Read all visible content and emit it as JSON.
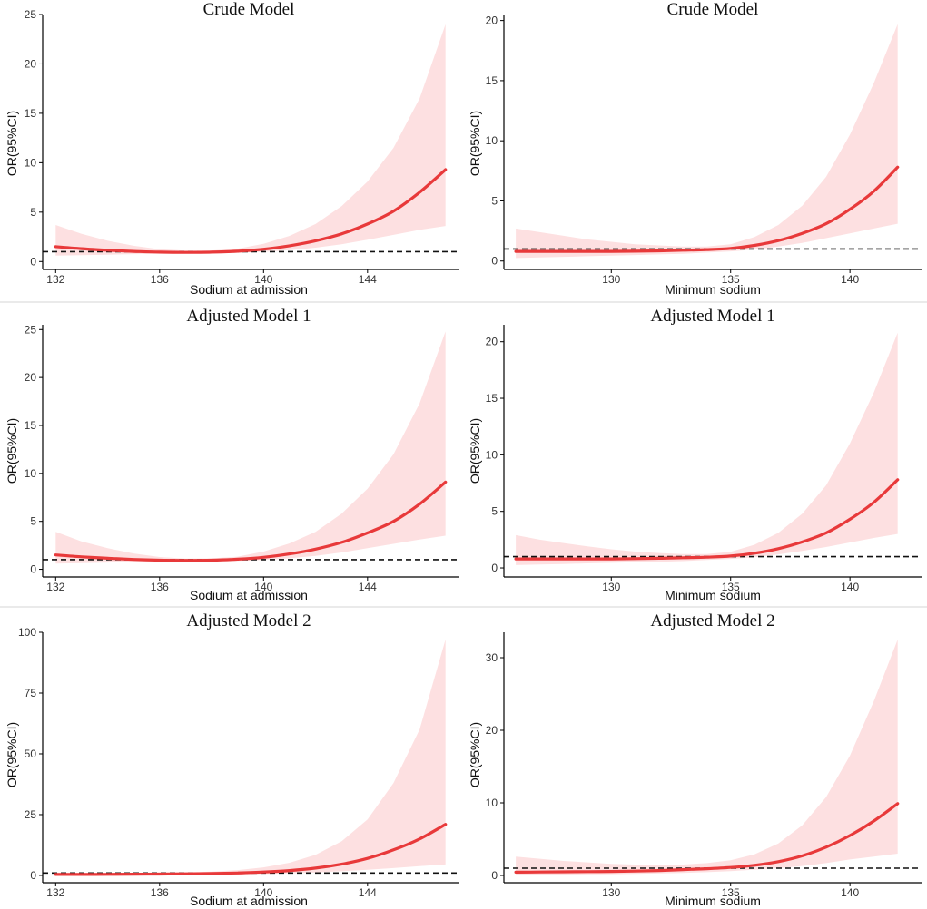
{
  "colors": {
    "curve": "#e8393a",
    "ci_band": "#fde0e1",
    "reference": "#111111"
  },
  "chart_data": [
    {
      "type": "line",
      "title": "Crude Model",
      "xlabel": "Sodium at admission",
      "ylabel": "OR(95%CI)",
      "xlim": [
        131.5,
        147.5
      ],
      "ylim": [
        -0.8,
        25
      ],
      "xticks": [
        132,
        136,
        140,
        144
      ],
      "yticks": [
        0,
        5,
        10,
        15,
        20,
        25
      ],
      "reference_y": 1,
      "series": [
        {
          "name": "OR",
          "x": [
            132,
            133,
            134,
            135,
            136,
            137,
            138,
            139,
            140,
            141,
            142,
            143,
            144,
            145,
            146,
            147
          ],
          "y": [
            1.5,
            1.3,
            1.15,
            1.03,
            0.95,
            0.93,
            0.95,
            1.05,
            1.25,
            1.6,
            2.1,
            2.8,
            3.8,
            5.1,
            7.0,
            9.3
          ],
          "lower": [
            0.6,
            0.65,
            0.7,
            0.75,
            0.78,
            0.8,
            0.82,
            0.88,
            0.98,
            1.15,
            1.4,
            1.75,
            2.2,
            2.7,
            3.2,
            3.6
          ],
          "upper": [
            3.7,
            2.8,
            2.1,
            1.6,
            1.25,
            1.1,
            1.12,
            1.3,
            1.8,
            2.6,
            3.8,
            5.6,
            8.1,
            11.5,
            16.5,
            24
          ]
        }
      ]
    },
    {
      "type": "line",
      "title": "Crude Model",
      "xlabel": "Minimum sodium",
      "ylabel": "OR(95%CI)",
      "xlim": [
        125.5,
        143
      ],
      "ylim": [
        -0.7,
        20.5
      ],
      "xticks": [
        130,
        135,
        140
      ],
      "yticks": [
        0,
        5,
        10,
        15,
        20
      ],
      "reference_y": 1,
      "series": [
        {
          "name": "OR",
          "x": [
            126,
            127,
            128,
            129,
            130,
            131,
            132,
            133,
            134,
            135,
            136,
            137,
            138,
            139,
            140,
            141,
            142
          ],
          "y": [
            0.8,
            0.8,
            0.8,
            0.8,
            0.8,
            0.82,
            0.85,
            0.9,
            0.95,
            1.05,
            1.3,
            1.7,
            2.3,
            3.1,
            4.3,
            5.8,
            7.8
          ],
          "lower": [
            0.25,
            0.3,
            0.35,
            0.4,
            0.45,
            0.5,
            0.55,
            0.6,
            0.7,
            0.8,
            0.95,
            1.2,
            1.5,
            1.9,
            2.3,
            2.7,
            3.1
          ],
          "upper": [
            2.7,
            2.4,
            2.1,
            1.8,
            1.6,
            1.4,
            1.3,
            1.2,
            1.2,
            1.4,
            2.0,
            3.0,
            4.6,
            7.0,
            10.5,
            14.8,
            19.7
          ]
        }
      ]
    },
    {
      "type": "line",
      "title": "Adjusted Model 1",
      "xlabel": "Sodium at admission",
      "ylabel": "OR(95%CI)",
      "xlim": [
        131.5,
        147.5
      ],
      "ylim": [
        -0.8,
        25.5
      ],
      "xticks": [
        132,
        136,
        140,
        144
      ],
      "yticks": [
        0,
        5,
        10,
        15,
        20,
        25
      ],
      "reference_y": 1,
      "series": [
        {
          "name": "OR",
          "x": [
            132,
            133,
            134,
            135,
            136,
            137,
            138,
            139,
            140,
            141,
            142,
            143,
            144,
            145,
            146,
            147
          ],
          "y": [
            1.5,
            1.3,
            1.15,
            1.03,
            0.95,
            0.93,
            0.95,
            1.05,
            1.25,
            1.6,
            2.1,
            2.8,
            3.8,
            5.0,
            6.8,
            9.1
          ],
          "lower": [
            0.6,
            0.65,
            0.7,
            0.75,
            0.78,
            0.8,
            0.82,
            0.88,
            0.98,
            1.15,
            1.4,
            1.75,
            2.2,
            2.65,
            3.1,
            3.5
          ],
          "upper": [
            3.9,
            2.9,
            2.2,
            1.65,
            1.28,
            1.12,
            1.14,
            1.32,
            1.85,
            2.7,
            3.9,
            5.8,
            8.4,
            12.0,
            17.3,
            24.8
          ]
        }
      ]
    },
    {
      "type": "line",
      "title": "Adjusted Model 1",
      "xlabel": "Minimum sodium",
      "ylabel": "OR(95%CI)",
      "xlim": [
        125.5,
        143
      ],
      "ylim": [
        -0.8,
        21.5
      ],
      "xticks": [
        130,
        135,
        140
      ],
      "yticks": [
        0,
        5,
        10,
        15,
        20
      ],
      "reference_y": 1,
      "series": [
        {
          "name": "OR",
          "x": [
            126,
            127,
            128,
            129,
            130,
            131,
            132,
            133,
            134,
            135,
            136,
            137,
            138,
            139,
            140,
            141,
            142
          ],
          "y": [
            0.8,
            0.8,
            0.8,
            0.8,
            0.8,
            0.82,
            0.85,
            0.9,
            0.95,
            1.05,
            1.3,
            1.7,
            2.3,
            3.1,
            4.3,
            5.8,
            7.8
          ],
          "lower": [
            0.25,
            0.3,
            0.35,
            0.4,
            0.45,
            0.5,
            0.55,
            0.6,
            0.7,
            0.8,
            0.95,
            1.2,
            1.5,
            1.85,
            2.25,
            2.65,
            3.0
          ],
          "upper": [
            2.9,
            2.5,
            2.2,
            1.9,
            1.65,
            1.45,
            1.32,
            1.22,
            1.22,
            1.42,
            2.05,
            3.1,
            4.8,
            7.3,
            11.0,
            15.5,
            20.8
          ]
        }
      ]
    },
    {
      "type": "line",
      "title": "Adjusted Model 2",
      "xlabel": "Sodium at admission",
      "ylabel": "OR(95%CI)",
      "xlim": [
        131.5,
        147.5
      ],
      "ylim": [
        -3,
        100
      ],
      "xticks": [
        132,
        136,
        140,
        144
      ],
      "yticks": [
        0,
        25,
        50,
        75,
        100
      ],
      "reference_y": 1,
      "series": [
        {
          "name": "OR",
          "x": [
            132,
            133,
            134,
            135,
            136,
            137,
            138,
            139,
            140,
            141,
            142,
            143,
            144,
            145,
            146,
            147
          ],
          "y": [
            0.4,
            0.4,
            0.45,
            0.5,
            0.55,
            0.65,
            0.8,
            1.0,
            1.4,
            2.0,
            3.0,
            4.6,
            7.0,
            10.5,
            15.0,
            21.0
          ],
          "lower": [
            0.05,
            0.05,
            0.08,
            0.1,
            0.15,
            0.2,
            0.3,
            0.4,
            0.6,
            0.85,
            1.2,
            1.7,
            2.3,
            3.0,
            3.8,
            4.5
          ],
          "upper": [
            1.2,
            1.1,
            1.1,
            1.1,
            1.2,
            1.3,
            1.6,
            2.2,
            3.3,
            5.2,
            8.5,
            14.0,
            23.0,
            38.0,
            60.0,
            97.0
          ]
        }
      ]
    },
    {
      "type": "line",
      "title": "Adjusted Model 2",
      "xlabel": "Minimum sodium",
      "ylabel": "OR(95%CI)",
      "xlim": [
        125.5,
        143
      ],
      "ylim": [
        -1,
        33.5
      ],
      "xticks": [
        130,
        135,
        140
      ],
      "yticks": [
        0,
        10,
        20,
        30
      ],
      "reference_y": 1,
      "series": [
        {
          "name": "OR",
          "x": [
            126,
            127,
            128,
            129,
            130,
            131,
            132,
            133,
            134,
            135,
            136,
            137,
            138,
            139,
            140,
            141,
            142
          ],
          "y": [
            0.45,
            0.47,
            0.5,
            0.52,
            0.55,
            0.6,
            0.68,
            0.8,
            0.93,
            1.1,
            1.4,
            1.9,
            2.7,
            3.9,
            5.5,
            7.5,
            9.9
          ],
          "lower": [
            0.08,
            0.1,
            0.12,
            0.15,
            0.18,
            0.22,
            0.28,
            0.35,
            0.45,
            0.6,
            0.8,
            1.0,
            1.3,
            1.7,
            2.2,
            2.6,
            3.0
          ],
          "upper": [
            2.6,
            2.3,
            2.0,
            1.8,
            1.6,
            1.5,
            1.45,
            1.5,
            1.7,
            2.1,
            2.9,
            4.4,
            6.9,
            10.8,
            16.5,
            24.0,
            32.5
          ]
        }
      ]
    }
  ]
}
